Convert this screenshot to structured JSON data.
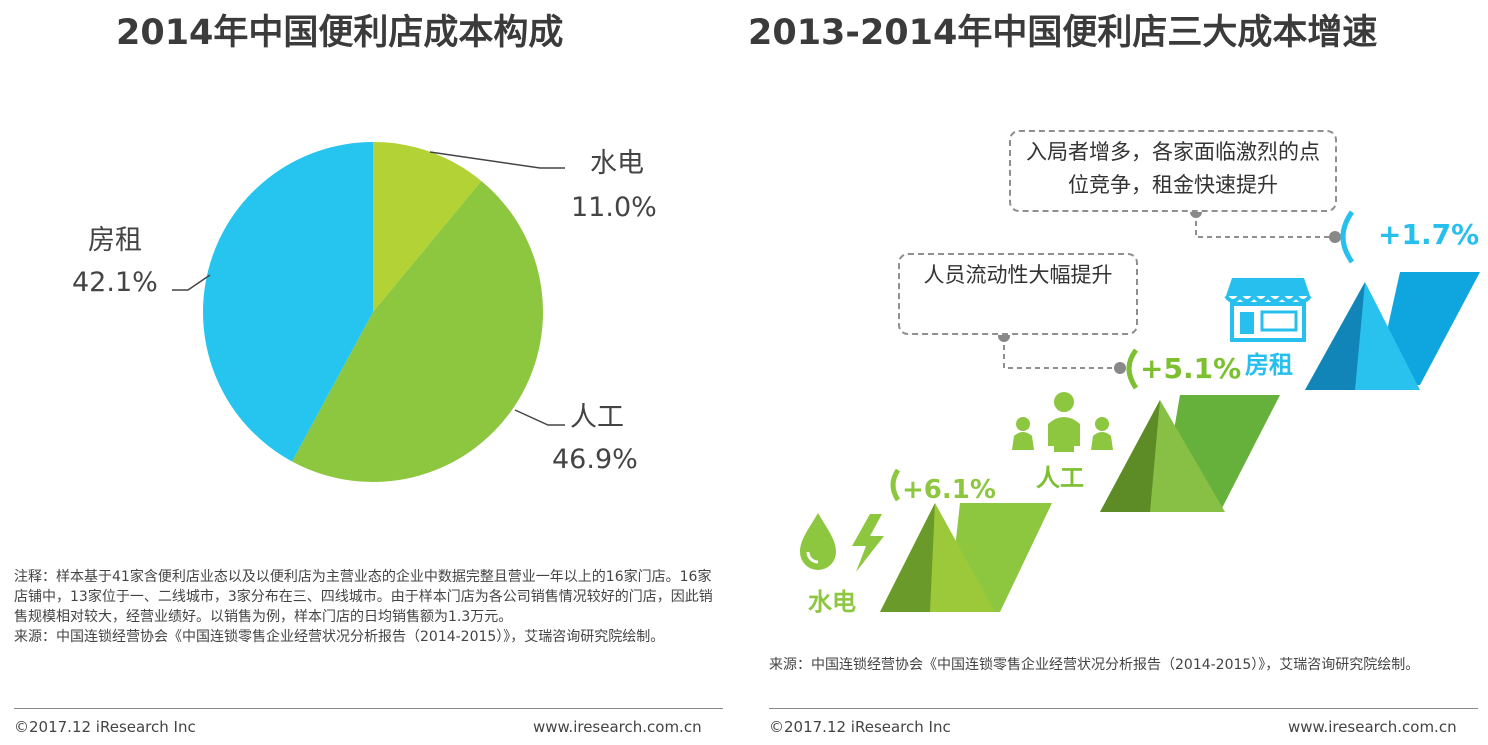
{
  "left_title": "2014年中国便利店成本构成",
  "right_title": "2013-2014年中国便利店三大成本增速",
  "colors": {
    "water": "#b2d235",
    "labor": "#8dc63f",
    "rent": "#25c5f0",
    "grow_green": "#7cbf2f",
    "grow_dark": "#5a8d24",
    "grow_blue": "#1aa3dc",
    "accent_blue": "#27c0ee"
  },
  "chart_data": [
    {
      "type": "pie",
      "title": "2014年中国便利店成本构成",
      "slices": [
        {
          "label": "水电",
          "value": 11.0,
          "display": "11.0%"
        },
        {
          "label": "人工",
          "value": 46.9,
          "display": "46.9%"
        },
        {
          "label": "房租",
          "value": 42.1,
          "display": "42.1%"
        }
      ]
    },
    {
      "type": "bar",
      "title": "2013-2014年中国便利店三大成本增速",
      "categories": [
        "水电",
        "人工",
        "房租"
      ],
      "values": [
        6.1,
        5.1,
        1.7
      ],
      "labels": [
        "+6.1%",
        "+5.1%",
        "+1.7%"
      ]
    }
  ],
  "callouts": {
    "labor": "人员流动性大幅提升",
    "rent": "入局者增多，各家面临激烈的点位竞争，租金快速提升"
  },
  "icons": [
    "water-drop-icon",
    "lightning-icon",
    "people-icon",
    "store-icon"
  ],
  "left_notes": [
    "注释：样本基于41家含便利店业态以及以便利店为主营业态的企业中数据完整且营业一年以上的16家门店。16家店铺中，13家位于一、二线城市，3家分布在三、四线城市。由于样本门店为各公司销售情况较好的门店，因此销售规模相对较大，经营业绩好。以销售为例，样本门店的日均销售额为1.3万元。",
    "来源：中国连锁经营协会《中国连锁零售企业经营状况分析报告（2014-2015）》，艾瑞咨询研究院绘制。"
  ],
  "right_notes": "来源：中国连锁经营协会《中国连锁零售企业经营状况分析报告（2014-2015）》，艾瑞咨询研究院绘制。",
  "footer": {
    "copyright": "©2017.12 iResearch Inc",
    "url": "www.iresearch.com.cn"
  }
}
